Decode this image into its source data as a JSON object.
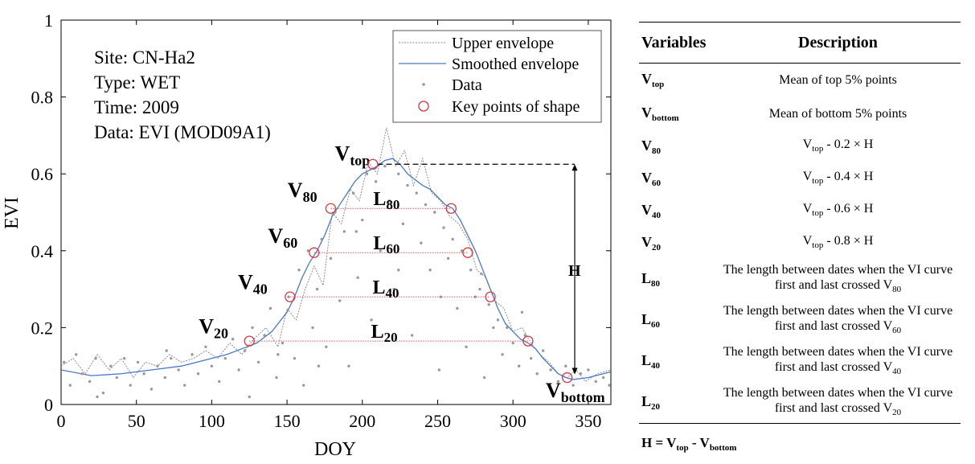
{
  "chart_data": {
    "type": "line",
    "xlabel": "DOY",
    "ylabel": "EVI",
    "xlim": [
      0,
      365
    ],
    "ylim": [
      0,
      1
    ],
    "xticks": [
      0,
      50,
      100,
      150,
      200,
      250,
      300,
      350
    ],
    "yticks": [
      0,
      0.2,
      0.4,
      0.6,
      0.8,
      1
    ],
    "ytick_labels": [
      "0",
      "0.2",
      "0.4",
      "0.6",
      "0.8",
      "1"
    ],
    "legend_position": "top-right",
    "legend": [
      "Upper envelope",
      "Smoothed envelope",
      "Data",
      "Key points of shape"
    ],
    "info": [
      "Site: CN-Ha2",
      "Type: WET",
      "Time: 2009",
      "Data: EVI (MOD09A1)"
    ],
    "series": [
      {
        "name": "Upper envelope",
        "style": "dotted",
        "color": "#8c8c8c",
        "x": [
          0,
          8,
          16,
          24,
          32,
          40,
          48,
          56,
          64,
          72,
          80,
          88,
          96,
          104,
          112,
          120,
          128,
          136,
          144,
          150,
          156,
          162,
          168,
          174,
          180,
          186,
          192,
          198,
          204,
          210,
          216,
          222,
          228,
          234,
          240,
          246,
          252,
          258,
          264,
          270,
          276,
          282,
          288,
          294,
          300,
          306,
          312,
          318,
          324,
          330,
          336,
          342,
          348,
          356,
          365
        ],
        "y": [
          0.1,
          0.12,
          0.08,
          0.13,
          0.09,
          0.12,
          0.07,
          0.11,
          0.1,
          0.13,
          0.11,
          0.12,
          0.14,
          0.12,
          0.16,
          0.13,
          0.17,
          0.2,
          0.15,
          0.25,
          0.22,
          0.3,
          0.36,
          0.31,
          0.5,
          0.47,
          0.56,
          0.53,
          0.63,
          0.6,
          0.72,
          0.62,
          0.66,
          0.57,
          0.64,
          0.55,
          0.53,
          0.49,
          0.47,
          0.43,
          0.35,
          0.33,
          0.27,
          0.25,
          0.19,
          0.2,
          0.16,
          0.13,
          0.11,
          0.08,
          0.07,
          0.09,
          0.06,
          0.08,
          0.09
        ]
      },
      {
        "name": "Smoothed envelope",
        "style": "solid",
        "color": "#4a78c8",
        "x": [
          0,
          20,
          40,
          60,
          80,
          100,
          110,
          120,
          130,
          140,
          150,
          155,
          160,
          165,
          170,
          175,
          180,
          185,
          190,
          195,
          200,
          205,
          210,
          215,
          220,
          225,
          230,
          235,
          240,
          245,
          250,
          255,
          260,
          265,
          270,
          275,
          280,
          285,
          290,
          295,
          300,
          305,
          310,
          315,
          320,
          325,
          330,
          335,
          340,
          350,
          360,
          365
        ],
        "y": [
          0.09,
          0.075,
          0.08,
          0.09,
          0.1,
          0.12,
          0.13,
          0.145,
          0.16,
          0.19,
          0.24,
          0.28,
          0.33,
          0.37,
          0.4,
          0.44,
          0.49,
          0.52,
          0.55,
          0.58,
          0.6,
          0.61,
          0.62,
          0.635,
          0.64,
          0.625,
          0.6,
          0.585,
          0.57,
          0.56,
          0.54,
          0.52,
          0.51,
          0.48,
          0.44,
          0.4,
          0.35,
          0.3,
          0.25,
          0.21,
          0.19,
          0.17,
          0.16,
          0.145,
          0.12,
          0.1,
          0.08,
          0.07,
          0.065,
          0.07,
          0.08,
          0.085
        ]
      },
      {
        "name": "Data",
        "style": "points",
        "color": "#999999",
        "x": [
          2,
          6,
          10,
          14,
          19,
          23,
          28,
          33,
          37,
          42,
          46,
          51,
          55,
          60,
          64,
          69,
          73,
          78,
          82,
          87,
          91,
          96,
          100,
          105,
          109,
          114,
          118,
          122,
          127,
          131,
          135,
          139,
          143,
          147,
          151,
          155,
          158,
          161,
          164,
          167,
          170,
          173,
          176,
          179,
          182,
          185,
          188,
          191,
          194,
          197,
          200,
          203,
          206,
          209,
          212,
          215,
          218,
          221,
          224,
          227,
          230,
          233,
          236,
          239,
          242,
          245,
          248,
          251,
          254,
          257,
          260,
          263,
          266,
          269,
          272,
          275,
          278,
          281,
          284,
          287,
          290,
          293,
          296,
          300,
          304,
          308,
          312,
          316,
          320,
          325,
          330,
          335,
          340,
          345,
          350,
          355,
          360,
          364,
          24,
          70,
          125,
          144,
          171,
          196,
          224,
          252,
          279,
          306
        ],
        "y": [
          0.11,
          0.05,
          0.13,
          0.08,
          0.06,
          0.12,
          0.03,
          0.1,
          0.07,
          0.12,
          0.05,
          0.11,
          0.08,
          0.04,
          0.1,
          0.07,
          0.12,
          0.09,
          0.05,
          0.13,
          0.08,
          0.15,
          0.1,
          0.06,
          0.12,
          0.17,
          0.09,
          0.14,
          0.2,
          0.11,
          0.18,
          0.25,
          0.07,
          0.16,
          0.28,
          0.12,
          0.35,
          0.05,
          0.4,
          0.2,
          0.3,
          0.43,
          0.15,
          0.38,
          0.5,
          0.27,
          0.45,
          0.1,
          0.55,
          0.33,
          0.48,
          0.6,
          0.22,
          0.58,
          0.4,
          0.62,
          0.53,
          0.3,
          0.6,
          0.47,
          0.57,
          0.18,
          0.55,
          0.42,
          0.52,
          0.35,
          0.5,
          0.09,
          0.46,
          0.38,
          0.43,
          0.25,
          0.4,
          0.15,
          0.35,
          0.28,
          0.3,
          0.07,
          0.26,
          0.2,
          0.22,
          0.13,
          0.2,
          0.16,
          0.1,
          0.18,
          0.12,
          0.08,
          0.14,
          0.09,
          0.06,
          0.1,
          0.05,
          0.08,
          0.09,
          0.06,
          0.07,
          0.05,
          0.02,
          0.14,
          0.02,
          0.13,
          0.1,
          0.45,
          0.35,
          0.28,
          0.34,
          0.24
        ]
      },
      {
        "name": "Key points of shape",
        "style": "circles",
        "color": "#d9363e",
        "x": [
          207,
          179,
          259,
          168,
          270,
          152,
          285,
          125,
          310,
          336
        ],
        "y": [
          0.625,
          0.51,
          0.51,
          0.395,
          0.395,
          0.28,
          0.28,
          0.165,
          0.165,
          0.07
        ]
      }
    ],
    "annotations": {
      "point_labels": [
        {
          "text": "V",
          "sub": "top",
          "x": 210,
          "y": 0.635
        },
        {
          "text": "V",
          "sub": "80",
          "x": 170,
          "y": 0.54
        },
        {
          "text": "V",
          "sub": "60",
          "x": 157,
          "y": 0.42
        },
        {
          "text": "V",
          "sub": "40",
          "x": 137,
          "y": 0.3
        },
        {
          "text": "V",
          "sub": "20",
          "x": 111,
          "y": 0.185
        },
        {
          "text": "V",
          "sub": "bottom",
          "x": 334,
          "y": 0.04
        }
      ],
      "length_lines": [
        {
          "text": "L",
          "sub": "80",
          "x1": 179,
          "x2": 259,
          "y": 0.51
        },
        {
          "text": "L",
          "sub": "60",
          "x1": 168,
          "x2": 270,
          "y": 0.395
        },
        {
          "text": "L",
          "sub": "40",
          "x1": 152,
          "x2": 285,
          "y": 0.28
        },
        {
          "text": "L",
          "sub": "20",
          "x1": 125,
          "x2": 310,
          "y": 0.165
        }
      ],
      "height_arrow": {
        "label": "H",
        "x": 341,
        "y_top": 0.625,
        "y_bottom": 0.07
      }
    }
  },
  "table": {
    "headers": [
      "Variables",
      "Description"
    ],
    "rows": [
      {
        "var": "V",
        "var_sub": "top",
        "desc": "Mean of top 5% points",
        "desc_sub": ""
      },
      {
        "var": "V",
        "var_sub": "bottom",
        "desc": "Mean of bottom 5% points",
        "desc_sub": ""
      },
      {
        "var": "V",
        "var_sub": "80",
        "desc_pre": "V",
        "desc_pre_sub": "top",
        "desc": " - 0.2 × H",
        "desc_sub": ""
      },
      {
        "var": "V",
        "var_sub": "60",
        "desc_pre": "V",
        "desc_pre_sub": "top",
        "desc": " - 0.4 × H",
        "desc_sub": ""
      },
      {
        "var": "V",
        "var_sub": "40",
        "desc_pre": "V",
        "desc_pre_sub": "top",
        "desc": " - 0.6 × H",
        "desc_sub": ""
      },
      {
        "var": "V",
        "var_sub": "20",
        "desc_pre": "V",
        "desc_pre_sub": "top",
        "desc": " - 0.8 × H",
        "desc_sub": ""
      },
      {
        "var": "L",
        "var_sub": "80",
        "desc": "The length between dates when the VI curve first and last crossed V",
        "desc_sub": "80"
      },
      {
        "var": "L",
        "var_sub": "60",
        "desc": "The length between dates when the VI curve first and last crossed V",
        "desc_sub": "60"
      },
      {
        "var": "L",
        "var_sub": "40",
        "desc": "The length between dates when the VI curve first and last crossed V",
        "desc_sub": "40"
      },
      {
        "var": "L",
        "var_sub": "20",
        "desc": "The length between dates when the VI curve first and last crossed V",
        "desc_sub": "20"
      }
    ],
    "formula": {
      "lhs": "H = V",
      "sub1": "top",
      "mid": " - V",
      "sub2": "bottom"
    }
  }
}
